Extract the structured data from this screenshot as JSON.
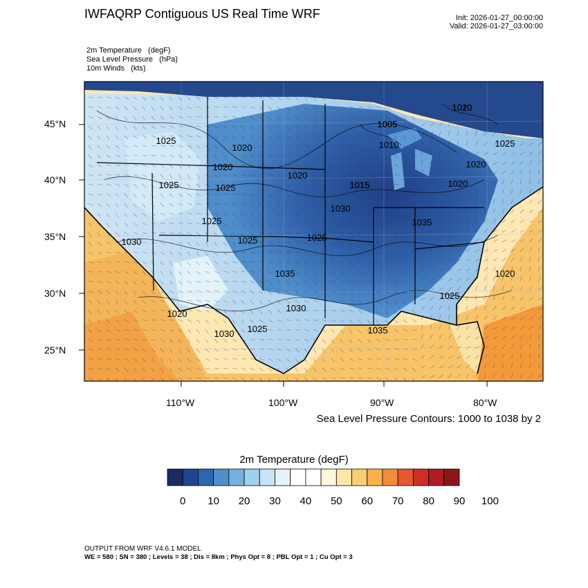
{
  "header": {
    "title": "IWFAQRP Contiguous US Real Time WRF",
    "init": "Init: 2026-01-27_00:00:00",
    "valid": "Valid: 2026-01-27_03:00:00"
  },
  "fields": [
    "2m Temperature   (degF)",
    "Sea Level Pressure   (hPa)",
    "10m Winds   (kts)"
  ],
  "map": {
    "lat_labels": [
      "45°N",
      "40°N",
      "35°N",
      "30°N",
      "25°N"
    ],
    "lon_labels": [
      "110°W",
      "100°W",
      "90°W",
      "80°W"
    ],
    "pressure_labels": [
      "1010",
      "1005",
      "1010",
      "1025",
      "1020",
      "1020",
      "1025",
      "1025",
      "1020",
      "1015",
      "1020",
      "1020",
      "1025",
      "1030",
      "1025",
      "1025",
      "1025",
      "1030",
      "1035",
      "1035",
      "1020",
      "1030",
      "1020",
      "1025",
      "1030",
      "1035",
      "1025",
      "1005",
      "1015",
      "1020"
    ],
    "contour_note": "Sea Level Pressure Contours: 1000 to 1038 by 2"
  },
  "colorbar": {
    "title": "2m Temperature  (degF)",
    "colors": [
      "#1a2a63",
      "#1f4591",
      "#2f66b3",
      "#4e8fcc",
      "#75b0de",
      "#9fd0f0",
      "#c6e4f7",
      "#e6f2fa",
      "#ffffff",
      "#ffffff",
      "#fff6da",
      "#fee6a8",
      "#fdcd72",
      "#fbb04b",
      "#f48b3a",
      "#e6582e",
      "#cf2e27",
      "#ae1b22",
      "#8c1519"
    ],
    "labels": [
      "0",
      "10",
      "20",
      "30",
      "40",
      "50",
      "60",
      "70",
      "80",
      "90",
      "100"
    ]
  },
  "footer": {
    "line1": "OUTPUT FROM WRF V4.6.1 MODEL",
    "line2": "WE = 580 ; SN = 380 ; Levels = 38 ; Dis = 8km ; Phys Opt = 8 ; PBL Opt = 1 ; Cu Opt = 3"
  }
}
